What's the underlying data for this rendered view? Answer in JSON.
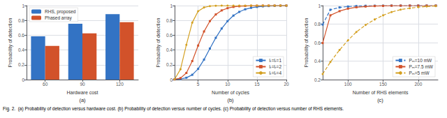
{
  "caption": "Fig. 2.  (a) Probability of detection versus hardware cost. (b) Probability of detection versus number of cycles. (c) Probability of detection versus number of RHS elements.",
  "chart_data": [
    {
      "type": "bar",
      "title": "(a)",
      "categories": [
        60,
        90,
        120
      ],
      "series": [
        {
          "name": "RHS, proposed",
          "color": "#3373c4",
          "values": [
            0.585,
            0.755,
            0.885
          ]
        },
        {
          "name": "Phased array",
          "color": "#d2522a",
          "values": [
            0.455,
            0.625,
            0.775
          ]
        }
      ],
      "xlabel": "Hardware cost",
      "ylabel": "Probability of detection",
      "ylim": [
        0,
        1
      ],
      "yticks": [
        0,
        0.2,
        0.4,
        0.6,
        0.8,
        1
      ],
      "grid": "y",
      "legend": "upper left"
    },
    {
      "type": "line",
      "title": "(b)",
      "x": [
        1,
        2,
        3,
        4,
        5,
        6,
        7,
        8,
        9,
        10,
        11,
        12,
        13,
        14,
        15,
        16,
        17,
        18,
        19,
        20
      ],
      "series": [
        {
          "name": "lₜ=lᵣ=1",
          "color": "#3373c4",
          "marker": "square",
          "line_style": "solid",
          "values": [
            0.003,
            0.008,
            0.025,
            0.065,
            0.145,
            0.27,
            0.42,
            0.565,
            0.69,
            0.79,
            0.865,
            0.915,
            0.95,
            0.97,
            0.982,
            0.99,
            0.994,
            0.997,
            0.998,
            0.999
          ]
        },
        {
          "name": "lₜ=lᵣ=2",
          "color": "#d2522a",
          "marker": "square",
          "line_style": "solid",
          "values": [
            0.003,
            0.02,
            0.09,
            0.25,
            0.46,
            0.65,
            0.79,
            0.88,
            0.935,
            0.965,
            0.982,
            0.991,
            0.995,
            0.998,
            0.999,
            1.0,
            1.0,
            1.0,
            1.0,
            1.0
          ]
        },
        {
          "name": "lₜ=lᵣ=4",
          "color": "#d4a020",
          "marker": "circle",
          "line_style": "solid",
          "values": [
            0.005,
            0.14,
            0.47,
            0.77,
            0.925,
            0.975,
            0.993,
            0.998,
            0.9993,
            0.9997,
            1.0,
            1.0,
            1.0,
            1.0,
            1.0,
            1.0,
            1.0,
            1.0,
            1.0,
            1.0
          ]
        }
      ],
      "xlabel": "Number of cycles",
      "ylabel": "Probability of detection",
      "xlim": [
        1,
        20
      ],
      "xticks": [
        5,
        10,
        15,
        20
      ],
      "ylim": [
        0,
        1
      ],
      "yticks": [
        0,
        0.2,
        0.4,
        0.6,
        0.8,
        1
      ],
      "grid": true,
      "legend": "lower right"
    },
    {
      "type": "line",
      "title": "(c)",
      "x": [
        64,
        75,
        88,
        100,
        112,
        125,
        138,
        150,
        162,
        175,
        188,
        200,
        212,
        225
      ],
      "series": [
        {
          "name": "Pₘ=10 mW",
          "color": "#3373c4",
          "marker": "square",
          "line_style": "dashed",
          "values": [
            0.795,
            0.955,
            0.98,
            0.99,
            0.995,
            0.998,
            0.999,
            0.9995,
            1.0,
            1.0,
            1.0,
            1.0,
            1.0,
            1.0
          ]
        },
        {
          "name": "Pₘ=7.5 mW",
          "color": "#d2522a",
          "marker": "square",
          "line_style": "solid",
          "values": [
            0.595,
            0.895,
            0.94,
            0.967,
            0.982,
            0.99,
            0.995,
            0.997,
            0.999,
            0.9995,
            1.0,
            1.0,
            1.0,
            1.0
          ]
        },
        {
          "name": "Pₘ=5 mW",
          "color": "#d4a020",
          "marker": "circle",
          "line_style": "dashed",
          "values": [
            0.26,
            0.39,
            0.52,
            0.625,
            0.715,
            0.79,
            0.85,
            0.895,
            0.93,
            0.957,
            0.972,
            0.983,
            0.99,
            0.995
          ]
        }
      ],
      "xlabel": "Number of RHS elements",
      "ylabel": "Probability of detection",
      "xlim": [
        64,
        228
      ],
      "xticks": [
        100,
        150,
        200
      ],
      "ylim": [
        0.2,
        1
      ],
      "yticks": [
        0.2,
        0.4,
        0.6,
        0.8,
        1
      ],
      "grid": true,
      "legend": "lower right"
    }
  ]
}
